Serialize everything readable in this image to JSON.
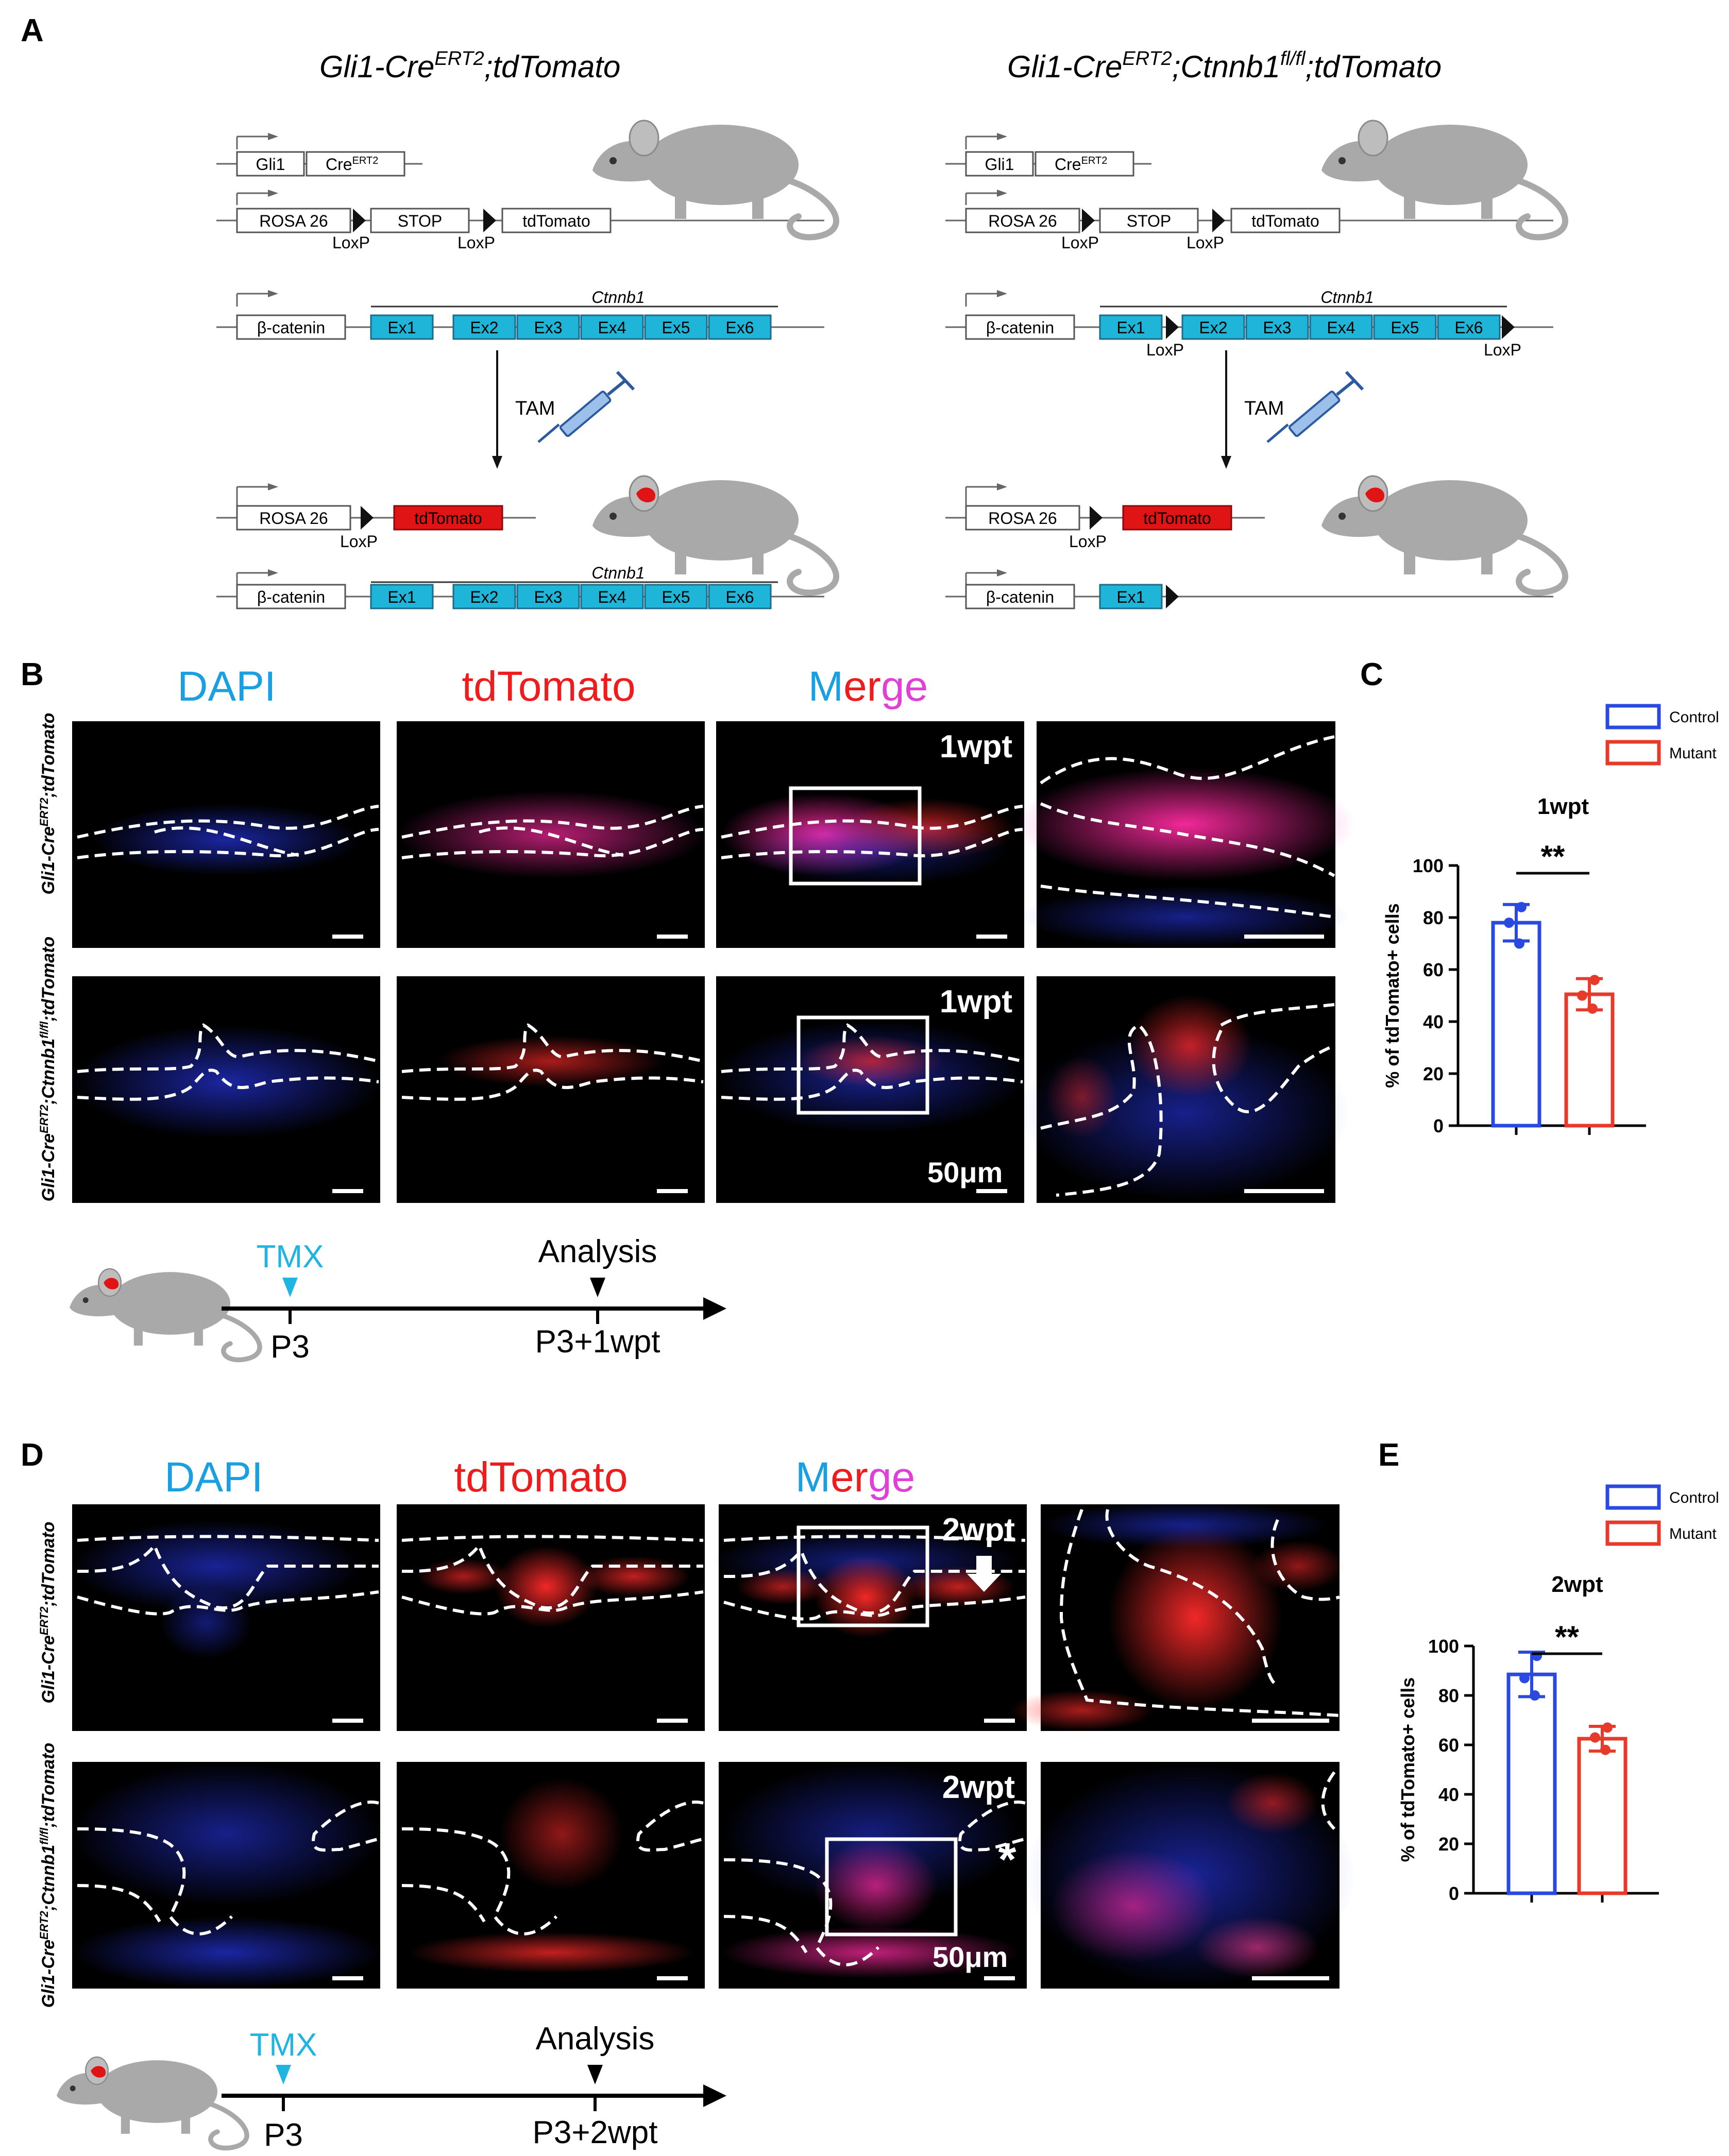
{
  "panel_letters": {
    "a": "A",
    "b": "B",
    "c": "C",
    "d": "D",
    "e": "E"
  },
  "panel_a": {
    "left": {
      "title_main": "Gli1-Cre",
      "title_sup": "ERT2",
      "title_rest": ";tdTomato",
      "gli1": "Gli1",
      "cre": "Cre",
      "cre_sup": "ERT2",
      "rosa": "ROSA 26",
      "stop": "STOP",
      "tdtomato": "tdTomato",
      "loxp": "LoxP",
      "bcat": "β-catenin",
      "ctnnb1": "Ctnnb1",
      "exons": [
        "Ex1",
        "Ex2",
        "Ex3",
        "Ex4",
        "Ex5",
        "Ex6"
      ],
      "tam": "TAM"
    },
    "right": {
      "title_main": "Gli1-Cre",
      "title_sup": "ERT2",
      "title_mid": ";Ctnnb1",
      "title_sup2": "fl/fl",
      "title_rest": ";tdTomato",
      "gli1": "Gli1",
      "cre": "Cre",
      "cre_sup": "ERT2",
      "rosa": "ROSA 26",
      "stop": "STOP",
      "tdtomato": "tdTomato",
      "loxp": "LoxP",
      "bcat": "β-catenin",
      "ctnnb1": "Ctnnb1",
      "exons": [
        "Ex1",
        "Ex2",
        "Ex3",
        "Ex4",
        "Ex5",
        "Ex6"
      ],
      "tam": "TAM"
    }
  },
  "panel_b": {
    "headers": {
      "dapi": "DAPI",
      "tdtomato": "tdTomato",
      "merge_1": "M",
      "merge_2": "er",
      "merge_3": "ge"
    },
    "row_labels": {
      "control_main": "Gli1-Cre",
      "control_sup": "ERT2",
      "control_rest": ";tdTomato",
      "mutant_main": "Gli1-Cre",
      "mutant_sup": "ERT2",
      "mutant_mid": ";Ctnnb1",
      "mutant_sup2": "fl/fl",
      "mutant_rest": ";tdTomato"
    },
    "timepoint": "1wpt",
    "scale": "50μm",
    "timeline": {
      "tmx": "TMX",
      "analysis": "Analysis",
      "start": "P3",
      "end": "P3+1wpt"
    }
  },
  "panel_d": {
    "headers": {
      "dapi": "DAPI",
      "tdtomato": "tdTomato",
      "merge_1": "M",
      "merge_2": "er",
      "merge_3": "ge"
    },
    "row_labels": {
      "control_main": "Gli1-Cre",
      "control_sup": "ERT2",
      "control_rest": ";tdTomato",
      "mutant_main": "Gli1-Cre",
      "mutant_sup": "ERT2",
      "mutant_mid": ";Ctnnb1",
      "mutant_sup2": "fl/fl",
      "mutant_rest": ";tdTomato"
    },
    "timepoint": "2wpt",
    "scale": "50μm",
    "asterisk": "*",
    "timeline": {
      "tmx": "TMX",
      "analysis": "Analysis",
      "start": "P3",
      "end": "P3+2wpt"
    }
  },
  "colors": {
    "dapi": "#1a9fe0",
    "tdtomato": "#ee1c1c",
    "merge_m": "#1a9fe0",
    "merge_e": "#ee1c1c",
    "merge_ge": "#e040d8",
    "control": "#2a49e0",
    "mutant": "#e83a2a",
    "exon": "#1fb5d8"
  },
  "chart_data": [
    {
      "type": "bar",
      "title": "1wpt",
      "ylabel": "% of tdTomato+ cells",
      "xlabel": "",
      "categories": [
        "Control",
        "Mutant"
      ],
      "values": [
        78,
        50.5
      ],
      "errors": [
        7,
        6
      ],
      "points": [
        [
          84,
          78,
          70
        ],
        [
          56,
          50,
          45
        ]
      ],
      "ylim": [
        0,
        100
      ],
      "yticks": [
        0,
        20,
        40,
        60,
        80,
        100
      ],
      "legend": [
        "Control",
        "Mutant"
      ],
      "significance": "**"
    },
    {
      "type": "bar",
      "title": "2wpt",
      "ylabel": "% of tdTomato+ cells",
      "xlabel": "",
      "categories": [
        "Control",
        "Mutant"
      ],
      "values": [
        88.5,
        62.5
      ],
      "errors": [
        9,
        5
      ],
      "points": [
        [
          96,
          87,
          80
        ],
        [
          67,
          63,
          58
        ]
      ],
      "ylim": [
        0,
        100
      ],
      "yticks": [
        0,
        20,
        40,
        60,
        80,
        100
      ],
      "legend": [
        "Control",
        "Mutant"
      ],
      "significance": "**"
    }
  ]
}
